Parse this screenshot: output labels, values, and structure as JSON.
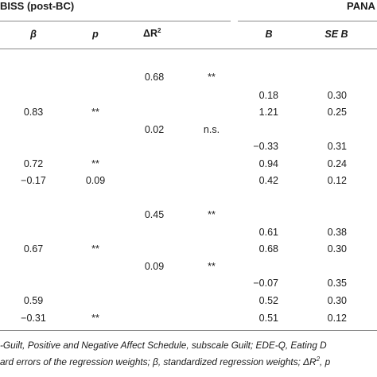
{
  "group_headers": {
    "left": "BISS (post-BC)",
    "right": "PANA"
  },
  "columns": {
    "beta": "β",
    "p": "p",
    "delta_r2": "ΔR",
    "delta_r2_sup": "2",
    "B": "B",
    "seb": "SE B"
  },
  "rows": [
    {
      "beta": "",
      "p": "",
      "dr2": "0.68",
      "dr2sig": "**",
      "B": "",
      "seb": ""
    },
    {
      "beta": "",
      "p": "",
      "dr2": "",
      "dr2sig": "",
      "B": "0.18",
      "seb": "0.30"
    },
    {
      "beta": "0.83",
      "p": "**",
      "dr2": "",
      "dr2sig": "",
      "B": "1.21",
      "seb": "0.25"
    },
    {
      "beta": "",
      "p": "",
      "dr2": "0.02",
      "dr2sig": "n.s.",
      "B": "",
      "seb": ""
    },
    {
      "beta": "",
      "p": "",
      "dr2": "",
      "dr2sig": "",
      "B": "−0.33",
      "seb": "0.31"
    },
    {
      "beta": "0.72",
      "p": "**",
      "dr2": "",
      "dr2sig": "",
      "B": "0.94",
      "seb": "0.24"
    },
    {
      "beta": "−0.17",
      "p": "0.09",
      "dr2": "",
      "dr2sig": "",
      "B": "0.42",
      "seb": "0.12"
    },
    {
      "beta": "",
      "p": "",
      "dr2": "0.45",
      "dr2sig": "**",
      "B": "",
      "seb": ""
    },
    {
      "beta": "",
      "p": "",
      "dr2": "",
      "dr2sig": "",
      "B": "0.61",
      "seb": "0.38"
    },
    {
      "beta": "0.67",
      "p": "**",
      "dr2": "",
      "dr2sig": "",
      "B": "0.68",
      "seb": "0.30"
    },
    {
      "beta": "",
      "p": "",
      "dr2": "0.09",
      "dr2sig": "**",
      "B": "",
      "seb": ""
    },
    {
      "beta": "",
      "p": "",
      "dr2": "",
      "dr2sig": "",
      "B": "−0.07",
      "seb": "0.35"
    },
    {
      "beta": "0.59",
      "p": "",
      "dr2": "",
      "dr2sig": "",
      "B": "0.52",
      "seb": "0.30"
    },
    {
      "beta": "−0.31",
      "p": "**",
      "dr2": "",
      "dr2sig": "",
      "B": "0.51",
      "seb": "0.12"
    }
  ],
  "footnote": {
    "line1": "-Guilt, Positive and Negative Affect Schedule, subscale Guilt; EDE-Q, Eating D",
    "line2a": "ard errors of the regression weights; β, standardized regression weights; ΔR",
    "line2_sup": "2",
    "line2b": ", p"
  }
}
